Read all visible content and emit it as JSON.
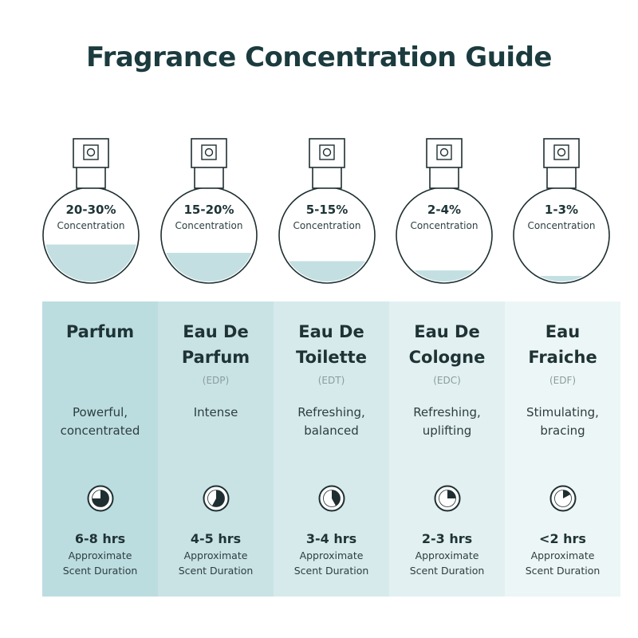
{
  "title": "Fragrance Concentration Guide",
  "colors": {
    "liquid": "#c3dfe2",
    "outline": "#1f2f31",
    "clock_face": "#ffffff",
    "clock_fill": "#1f2f31"
  },
  "types": [
    {
      "concentration": "20-30%",
      "concentration_label": "Concentration",
      "fill_level": 0.4,
      "name_line1": "Parfum",
      "name_line2": "",
      "abbr": "",
      "desc_line1": "Powerful,",
      "desc_line2": "concentrated",
      "icon": "clock-icon",
      "duration_fraction": 0.75,
      "duration": "6-8 hrs",
      "approx_line1": "Approximate",
      "approx_line2": "Scent Duration",
      "panel_color": "#bcdde0"
    },
    {
      "concentration": "15-20%",
      "concentration_label": "Concentration",
      "fill_level": 0.31,
      "name_line1": "Eau De",
      "name_line2": "Parfum",
      "abbr": "(EDP)",
      "desc_line1": "Intense",
      "desc_line2": "",
      "icon": "clock-icon",
      "duration_fraction": 0.58,
      "duration": "4-5 hrs",
      "approx_line1": "Approximate",
      "approx_line2": "Scent Duration",
      "panel_color": "#c9e3e5"
    },
    {
      "concentration": "5-15%",
      "concentration_label": "Concentration",
      "fill_level": 0.22,
      "name_line1": "Eau De",
      "name_line2": "Toilette",
      "abbr": "(EDT)",
      "desc_line1": "Refreshing,",
      "desc_line2": "balanced",
      "icon": "clock-icon",
      "duration_fraction": 0.42,
      "duration": "3-4 hrs",
      "approx_line1": "Approximate",
      "approx_line2": "Scent Duration",
      "panel_color": "#d6eaec"
    },
    {
      "concentration": "2-4%",
      "concentration_label": "Concentration",
      "fill_level": 0.12,
      "name_line1": "Eau De",
      "name_line2": "Cologne",
      "abbr": "(EDC)",
      "desc_line1": "Refreshing,",
      "desc_line2": "uplifting",
      "icon": "clock-icon",
      "duration_fraction": 0.25,
      "duration": "2-3 hrs",
      "approx_line1": "Approximate",
      "approx_line2": "Scent Duration",
      "panel_color": "#e2f0f1"
    },
    {
      "concentration": "1-3%",
      "concentration_label": "Concentration",
      "fill_level": 0.06,
      "name_line1": "Eau",
      "name_line2": "Fraiche",
      "abbr": "(EDF)",
      "desc_line1": "Stimulating,",
      "desc_line2": "bracing",
      "icon": "clock-icon",
      "duration_fraction": 0.17,
      "duration": "<2 hrs",
      "approx_line1": "Approximate",
      "approx_line2": "Scent Duration",
      "panel_color": "#edf6f6"
    }
  ]
}
